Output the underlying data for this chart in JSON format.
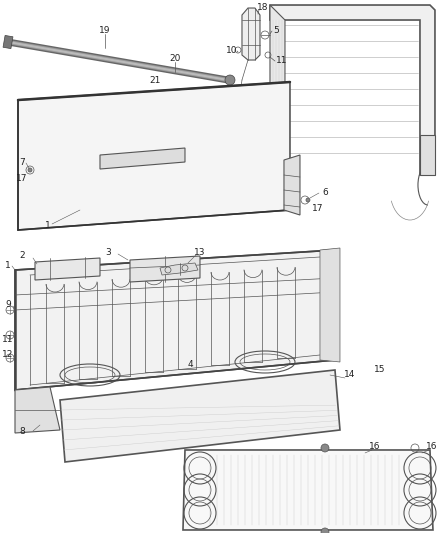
{
  "background_color": "#ffffff",
  "line_color": "#555555",
  "label_fontsize": 6.5,
  "label_color": "#222222",
  "figsize": [
    4.38,
    5.33
  ],
  "dpi": 100
}
